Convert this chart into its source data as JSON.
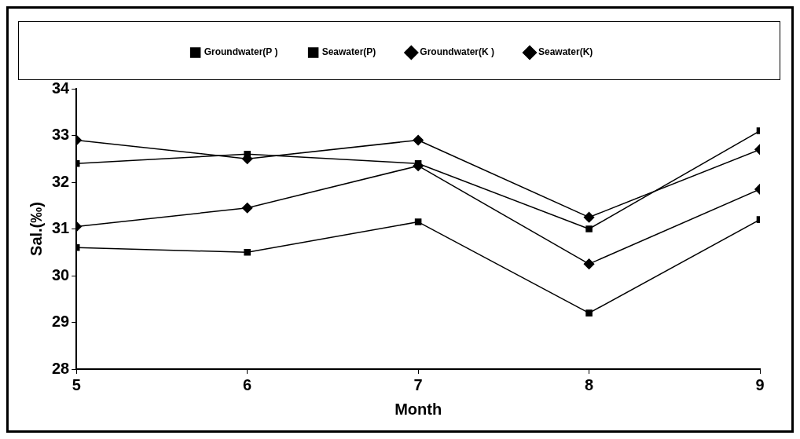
{
  "chart_data": {
    "type": "line",
    "xlabel": "Month",
    "ylabel": "Sal.(‰)",
    "x": [
      5,
      6,
      7,
      8,
      9
    ],
    "xlim": [
      5,
      9
    ],
    "xticks": [
      5,
      6,
      7,
      8,
      9
    ],
    "ylim": [
      28,
      34
    ],
    "yticks": [
      28,
      29,
      30,
      31,
      32,
      33,
      34
    ],
    "grid": false,
    "legend": "top",
    "line_style": "solid",
    "series": [
      {
        "name": "Groundwater(P )",
        "color": "#000000",
        "marker": "square",
        "values": [
          30.6,
          30.5,
          31.15,
          29.2,
          31.2
        ]
      },
      {
        "name": "Seawater(P)",
        "color": "#000000",
        "marker": "square",
        "values": [
          32.4,
          32.6,
          32.4,
          31.0,
          33.1
        ]
      },
      {
        "name": "Groundwater(K )",
        "color": "#000000",
        "marker": "diamond",
        "values": [
          31.05,
          31.45,
          32.35,
          30.25,
          31.85
        ]
      },
      {
        "name": "Seawater(K)",
        "color": "#000000",
        "marker": "diamond",
        "values": [
          32.9,
          32.5,
          32.9,
          31.25,
          32.7
        ]
      }
    ]
  }
}
